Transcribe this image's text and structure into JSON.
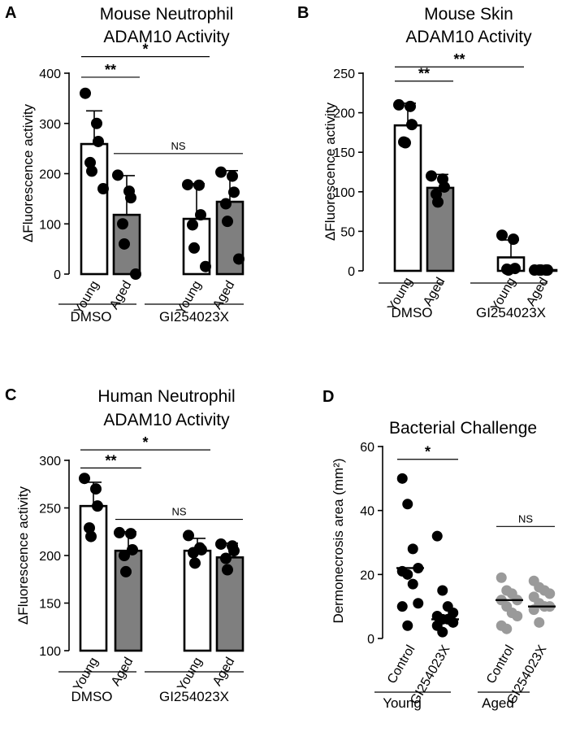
{
  "chart_data": [
    {
      "type": "bar",
      "panel_label": "A",
      "title": [
        "Mouse Neutrophil",
        "ADAM10 Activity"
      ],
      "ylabel": "ΔFluorescence activity",
      "ylim": [
        0,
        400
      ],
      "yticks": [
        "0",
        "100",
        "200",
        "300",
        "400"
      ],
      "categories": [
        "Young",
        "Aged",
        "Young",
        "Aged"
      ],
      "groups": [
        {
          "label": "DMSO"
        },
        {
          "label": "GI254023X"
        }
      ],
      "bar_fill": [
        "#ffffff",
        "#7f7f7f",
        "#ffffff",
        "#7f7f7f"
      ],
      "values": [
        259,
        118,
        110,
        144
      ],
      "errors": [
        66,
        78,
        70,
        62
      ],
      "points": [
        [
          360,
          300,
          264,
          222,
          205,
          170
        ],
        [
          197,
          165,
          152,
          100,
          60,
          0
        ],
        [
          178,
          177,
          118,
          98,
          52,
          15
        ],
        [
          203,
          195,
          163,
          140,
          105,
          30
        ]
      ],
      "annotations": [
        {
          "label": "**",
          "from": 0,
          "to": 1,
          "y": 392
        },
        {
          "label": "*",
          "from": 0,
          "to": 2,
          "y": 433
        },
        {
          "label": "NS",
          "from": 1,
          "to": 3,
          "y": 240
        }
      ]
    },
    {
      "type": "bar",
      "panel_label": "B",
      "title": [
        "Mouse Skin",
        "ADAM10 Activity"
      ],
      "ylabel": "ΔFluorescence activity",
      "ylim": [
        0,
        250
      ],
      "yticks": [
        "0",
        "50",
        "100",
        "150",
        "200",
        "250"
      ],
      "categories": [
        "Young",
        "Aged",
        "Young",
        "Aged"
      ],
      "groups": [
        {
          "label": "DMSO"
        },
        {
          "label": "GI254023X"
        }
      ],
      "bar_fill": [
        "#ffffff",
        "#7f7f7f",
        "#ffffff",
        "#7f7f7f"
      ],
      "values": [
        184,
        105,
        17,
        1
      ],
      "errors": [
        28,
        17,
        22,
        1
      ],
      "points": [
        [
          210,
          208,
          185,
          163,
          162
        ],
        [
          120,
          116,
          106,
          97,
          87
        ],
        [
          45,
          40,
          3,
          2,
          1
        ],
        [
          1,
          1,
          1,
          1,
          1
        ]
      ],
      "annotations": [
        {
          "label": "**",
          "from": 0,
          "to": 1,
          "y": 240
        },
        {
          "label": "**",
          "from": 0,
          "to": 2,
          "y": 258
        }
      ]
    },
    {
      "type": "bar",
      "panel_label": "C",
      "title": [
        "Human Neutrophil",
        "ADAM10 Activity"
      ],
      "ylabel": "ΔFluorescence activity",
      "ylim": [
        100,
        300
      ],
      "yticks": [
        "100",
        "150",
        "200",
        "250",
        "300"
      ],
      "categories": [
        "Young",
        "Aged",
        "Young",
        "Aged"
      ],
      "groups": [
        {
          "label": "DMSO"
        },
        {
          "label": "GI254023X"
        }
      ],
      "bar_fill": [
        "#ffffff",
        "#7f7f7f",
        "#ffffff",
        "#7f7f7f"
      ],
      "values": [
        252,
        205,
        205,
        198
      ],
      "errors": [
        25,
        20,
        13,
        15
      ],
      "points": [
        [
          281,
          270,
          252,
          229,
          220
        ],
        [
          224,
          223,
          206,
          200,
          183
        ],
        [
          221,
          208,
          206,
          203,
          192
        ],
        [
          212,
          210,
          205,
          197,
          185
        ]
      ],
      "annotations": [
        {
          "label": "**",
          "from": 0,
          "to": 1,
          "y": 292
        },
        {
          "label": "*",
          "from": 0,
          "to": 2,
          "y": 311
        },
        {
          "label": "NS",
          "from": 1,
          "to": 3,
          "y": 238
        }
      ]
    },
    {
      "type": "scatter",
      "panel_label": "D",
      "title": [
        "Bacterial Challenge"
      ],
      "ylabel": "Dermonecrosis area (mm²)",
      "ylim": [
        0,
        60
      ],
      "yticks": [
        "0",
        "20",
        "40",
        "60"
      ],
      "categories": [
        "Control",
        "GI254023X",
        "Control",
        "GI254023X"
      ],
      "groups": [
        {
          "label": "Young"
        },
        {
          "label": "Aged"
        }
      ],
      "point_colors": [
        "#000000",
        "#000000",
        "#9a9a9a",
        "#9a9a9a"
      ],
      "medians": [
        22,
        6,
        12,
        10
      ],
      "points": [
        [
          50,
          42,
          28,
          22,
          21,
          20,
          17,
          11,
          10,
          4
        ],
        [
          32,
          15,
          10,
          8,
          7,
          6,
          6,
          5,
          4,
          2
        ],
        [
          19,
          15,
          14,
          12,
          12,
          10,
          8,
          7,
          4,
          3
        ],
        [
          18,
          16,
          15,
          14,
          13,
          11,
          10,
          10,
          9,
          5
        ]
      ],
      "annotations": [
        {
          "label": "*",
          "from": 0,
          "to": 1,
          "y": 56
        },
        {
          "label": "NS",
          "from": 2,
          "to": 3,
          "y": 35
        }
      ]
    }
  ]
}
